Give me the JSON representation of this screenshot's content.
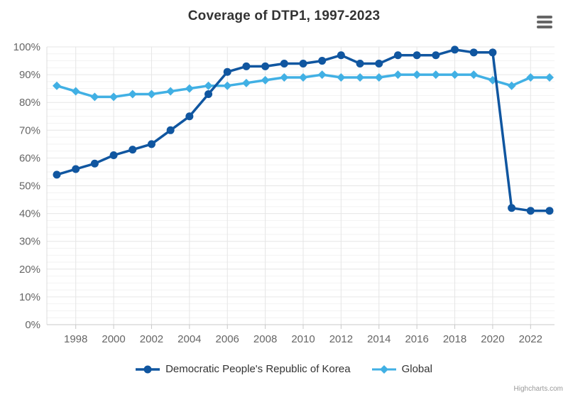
{
  "header": {
    "title": "Coverage of DTP1, 1997-2023"
  },
  "menu": {
    "icon": "hamburger-menu-icon"
  },
  "credit": {
    "label": "Highcharts.com"
  },
  "colors": {
    "dprk_series": "#1056a0",
    "global_series": "#41b0e4",
    "grid_major": "#e6e6e6",
    "grid_minor": "#f2f2f2",
    "axis_line": "#c8c8c8",
    "tick_label": "#666666",
    "title_text": "#333333"
  },
  "chart_data": {
    "type": "line",
    "title": "Coverage of DTP1, 1997-2023",
    "xlabel": "",
    "ylabel": "",
    "ylabel_format": "{value}%",
    "ylim": [
      0,
      100
    ],
    "y_tick_step": 10,
    "y_minor_step": 2.5,
    "grid": true,
    "legend_position": "bottom",
    "x": [
      1997,
      1998,
      1999,
      2000,
      2001,
      2002,
      2003,
      2004,
      2005,
      2006,
      2007,
      2008,
      2009,
      2010,
      2011,
      2012,
      2013,
      2014,
      2015,
      2016,
      2017,
      2018,
      2019,
      2020,
      2021,
      2022,
      2023
    ],
    "x_tick_labels": [
      1998,
      2000,
      2002,
      2004,
      2006,
      2008,
      2010,
      2012,
      2014,
      2016,
      2018,
      2020,
      2022
    ],
    "series": [
      {
        "name": "Democratic People's Republic of Korea",
        "marker": "circle",
        "color": "#1056a0",
        "values": [
          54,
          56,
          58,
          61,
          63,
          65,
          70,
          75,
          83,
          91,
          93,
          93,
          94,
          94,
          95,
          97,
          94,
          94,
          97,
          97,
          97,
          99,
          98,
          98,
          42,
          41,
          41
        ]
      },
      {
        "name": "Global",
        "marker": "diamond",
        "color": "#41b0e4",
        "values": [
          86,
          84,
          82,
          82,
          83,
          83,
          84,
          85,
          86,
          86,
          87,
          88,
          89,
          89,
          90,
          89,
          89,
          89,
          90,
          90,
          90,
          90,
          90,
          88,
          86,
          89,
          89
        ]
      }
    ]
  }
}
